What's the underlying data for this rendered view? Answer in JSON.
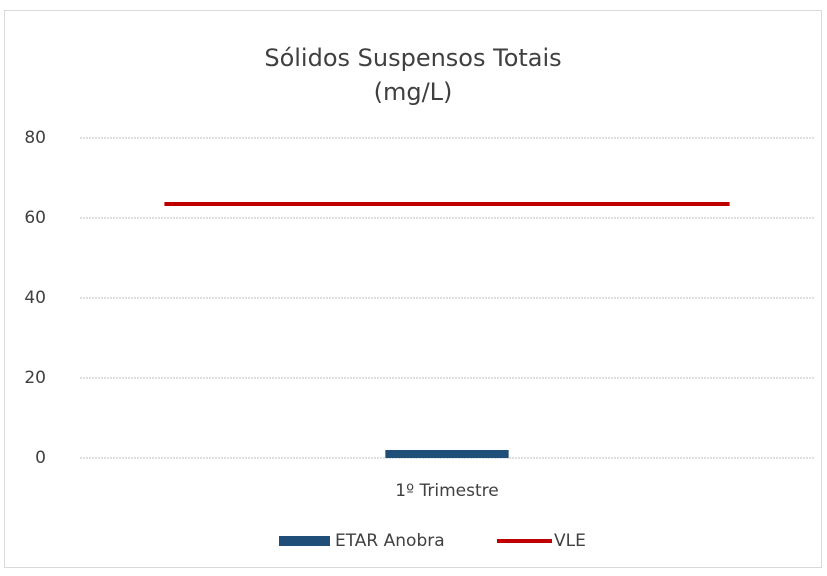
{
  "chart_data": {
    "type": "bar",
    "title": [
      "Sólidos Suspensos Totais",
      "(mg/L)"
    ],
    "categories": [
      "1º Trimestre"
    ],
    "series": [
      {
        "name": "ETAR Anobra",
        "type": "bar",
        "color": "#1f4e79",
        "values": [
          2
        ]
      },
      {
        "name": "VLE",
        "type": "line",
        "color": "#c00000",
        "values": [
          63.5
        ]
      }
    ],
    "ylim": [
      0,
      80
    ],
    "yticks": [
      0,
      20,
      40,
      60,
      80
    ],
    "grid": true,
    "legend": "bottom"
  }
}
